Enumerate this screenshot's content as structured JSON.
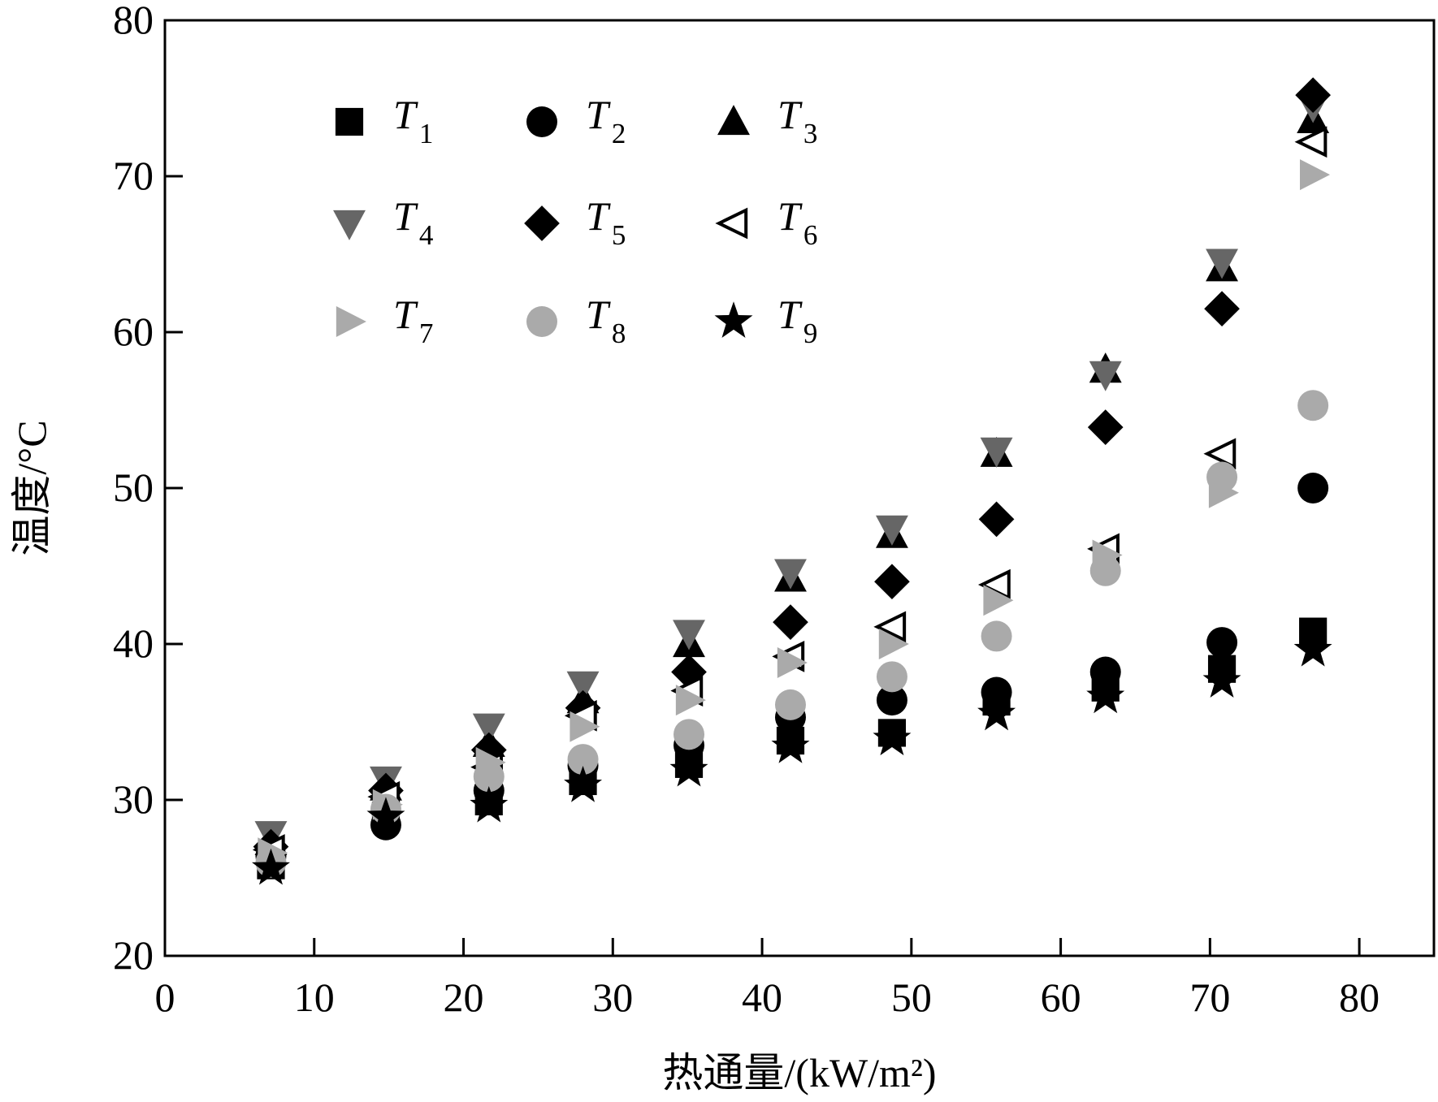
{
  "chart_data": {
    "type": "scatter",
    "title": "",
    "xlabel": "热通量/(kW/m²)",
    "ylabel": "温度/°C",
    "xlim": [
      0,
      85
    ],
    "ylim": [
      20,
      80
    ],
    "xticks": [
      0,
      10,
      20,
      30,
      40,
      50,
      60,
      70,
      80
    ],
    "yticks": [
      20,
      30,
      40,
      50,
      60,
      70,
      80
    ],
    "grid": false,
    "legend_position": "top-left",
    "x": [
      7.1,
      14.8,
      21.7,
      28.0,
      35.1,
      41.9,
      48.7,
      55.7,
      63.0,
      70.8,
      76.9
    ],
    "series": [
      {
        "name": "T",
        "sub": "1",
        "marker": "square",
        "color": "#000000",
        "values": [
          25.8,
          29.0,
          29.9,
          31.2,
          32.3,
          33.8,
          34.3,
          36.3,
          37.2,
          38.4,
          40.8
        ]
      },
      {
        "name": "T",
        "sub": "2",
        "marker": "circle",
        "color": "#000000",
        "values": [
          26.4,
          28.4,
          30.6,
          32.2,
          33.5,
          35.3,
          36.4,
          36.9,
          38.2,
          40.1,
          50.0
        ]
      },
      {
        "name": "T",
        "sub": "3",
        "marker": "triangle-up",
        "color": "#000000",
        "values": [
          27.3,
          30.8,
          33.6,
          36.4,
          40.0,
          44.2,
          47.0,
          52.2,
          57.6,
          64.1,
          73.6
        ]
      },
      {
        "name": "T",
        "sub": "4",
        "marker": "triangle-down",
        "color": "#666666",
        "values": [
          27.8,
          31.3,
          34.7,
          37.4,
          40.7,
          44.6,
          47.4,
          52.4,
          57.3,
          64.5,
          74.5
        ]
      },
      {
        "name": "T",
        "sub": "5",
        "marker": "diamond",
        "color": "#000000",
        "values": [
          27.0,
          30.6,
          33.2,
          35.9,
          38.2,
          41.4,
          44.0,
          48.0,
          53.9,
          61.5,
          75.2
        ]
      },
      {
        "name": "T",
        "sub": "6",
        "marker": "triangle-left-open",
        "color": "#000000",
        "values": [
          26.8,
          30.2,
          32.1,
          35.4,
          37.0,
          39.2,
          41.1,
          43.8,
          46.1,
          52.2,
          72.2
        ]
      },
      {
        "name": "T",
        "sub": "7",
        "marker": "triangle-right",
        "color": "#aaaaaa",
        "values": [
          26.6,
          29.7,
          32.4,
          34.7,
          36.4,
          38.8,
          40.0,
          42.8,
          45.7,
          49.7,
          70.1
        ]
      },
      {
        "name": "T",
        "sub": "8",
        "marker": "circle",
        "color": "#aaaaaa",
        "values": [
          26.0,
          29.4,
          31.5,
          32.6,
          34.2,
          36.1,
          37.9,
          40.5,
          44.7,
          50.7,
          55.3
        ]
      },
      {
        "name": "T",
        "sub": "9",
        "marker": "star",
        "color": "#000000",
        "values": [
          25.6,
          28.9,
          29.6,
          30.9,
          31.9,
          33.4,
          33.9,
          35.5,
          36.6,
          37.6,
          39.6
        ]
      }
    ]
  }
}
